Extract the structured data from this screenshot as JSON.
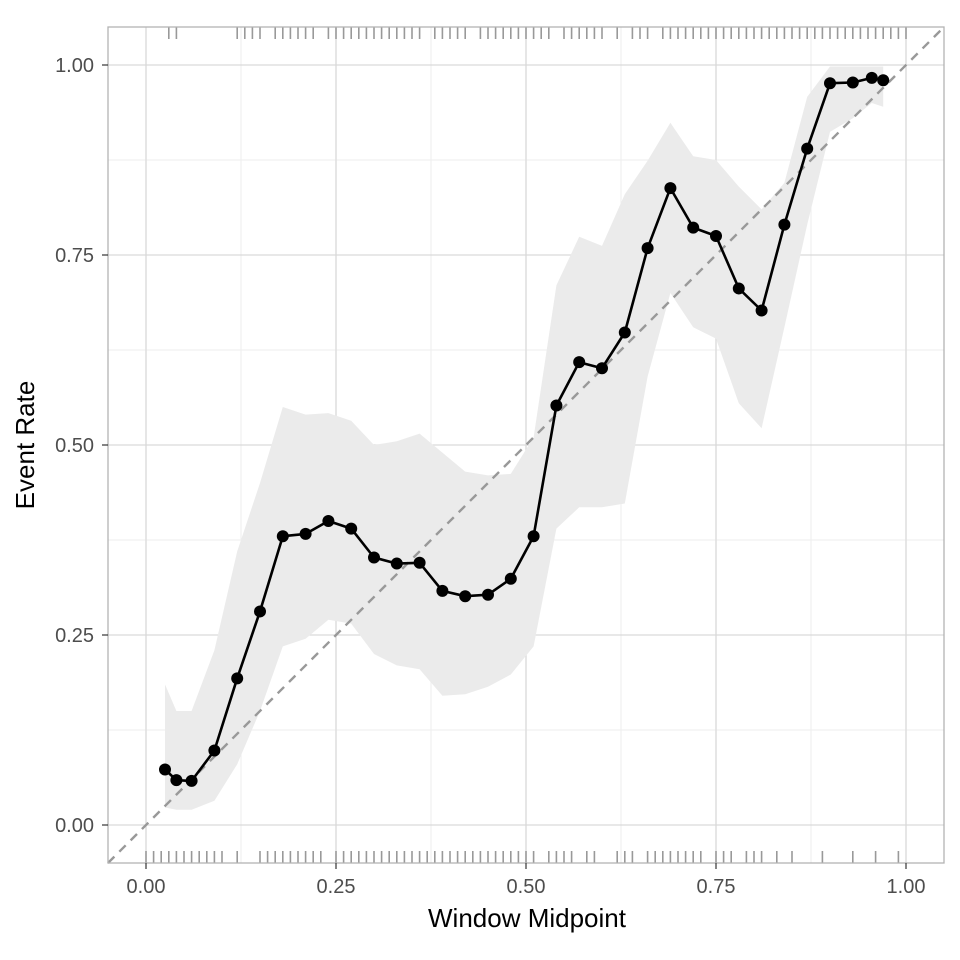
{
  "chart_data": {
    "type": "line",
    "title": "",
    "xlabel": "Window Midpoint",
    "ylabel": "Event Rate",
    "xlim": [
      -0.05,
      1.05
    ],
    "ylim": [
      -0.05,
      1.05
    ],
    "x_ticks": [
      {
        "value": 0.0,
        "label": "0.00"
      },
      {
        "value": 0.25,
        "label": "0.25"
      },
      {
        "value": 0.5,
        "label": "0.50"
      },
      {
        "value": 0.75,
        "label": "0.75"
      },
      {
        "value": 1.0,
        "label": "1.00"
      }
    ],
    "y_ticks": [
      {
        "value": 0.0,
        "label": "0.00"
      },
      {
        "value": 0.25,
        "label": "0.25"
      },
      {
        "value": 0.5,
        "label": "0.50"
      },
      {
        "value": 0.75,
        "label": "0.75"
      },
      {
        "value": 1.0,
        "label": "1.00"
      }
    ],
    "grid": true,
    "reference_line": {
      "x": [
        -0.05,
        1.05
      ],
      "y": [
        -0.05,
        1.05
      ],
      "style": "dashed"
    },
    "series": [
      {
        "x": [
          0.025,
          0.04,
          0.06,
          0.09,
          0.12,
          0.15,
          0.18,
          0.21,
          0.24,
          0.27,
          0.3,
          0.33,
          0.36,
          0.39,
          0.42,
          0.45,
          0.48,
          0.51,
          0.54,
          0.57,
          0.6,
          0.63,
          0.66,
          0.69,
          0.72,
          0.75,
          0.78,
          0.81,
          0.84,
          0.87,
          0.9,
          0.93,
          0.955,
          0.97
        ],
        "values": [
          0.073,
          0.059,
          0.058,
          0.098,
          0.193,
          0.281,
          0.38,
          0.383,
          0.4,
          0.39,
          0.352,
          0.344,
          0.345,
          0.308,
          0.301,
          0.303,
          0.324,
          0.38,
          0.552,
          0.609,
          0.601,
          0.648,
          0.759,
          0.838,
          0.786,
          0.775,
          0.706,
          0.677,
          0.79,
          0.89,
          0.976,
          0.977,
          0.983,
          0.98
        ],
        "lower": [
          0.023,
          0.02,
          0.02,
          0.032,
          0.08,
          0.15,
          0.235,
          0.245,
          0.27,
          0.265,
          0.225,
          0.21,
          0.205,
          0.17,
          0.172,
          0.182,
          0.198,
          0.235,
          0.39,
          0.418,
          0.418,
          0.423,
          0.59,
          0.7,
          0.655,
          0.64,
          0.555,
          0.522,
          0.655,
          0.79,
          0.912,
          0.93,
          0.95,
          0.945
        ],
        "upper": [
          0.185,
          0.15,
          0.15,
          0.23,
          0.36,
          0.45,
          0.55,
          0.54,
          0.542,
          0.532,
          0.5,
          0.505,
          0.515,
          0.49,
          0.465,
          0.46,
          0.462,
          0.51,
          0.71,
          0.774,
          0.762,
          0.83,
          0.874,
          0.924,
          0.88,
          0.875,
          0.84,
          0.81,
          0.845,
          0.958,
          0.998,
          0.998,
          0.998,
          0.998
        ],
        "color": "#000000"
      }
    ],
    "rug_top": [
      0.03,
      0.04,
      0.12,
      0.13,
      0.14,
      0.15,
      0.17,
      0.18,
      0.19,
      0.2,
      0.21,
      0.22,
      0.24,
      0.25,
      0.26,
      0.27,
      0.28,
      0.29,
      0.3,
      0.31,
      0.32,
      0.33,
      0.34,
      0.35,
      0.36,
      0.38,
      0.39,
      0.4,
      0.41,
      0.42,
      0.44,
      0.45,
      0.46,
      0.47,
      0.48,
      0.49,
      0.5,
      0.51,
      0.52,
      0.53,
      0.55,
      0.56,
      0.57,
      0.58,
      0.59,
      0.6,
      0.62,
      0.64,
      0.65,
      0.66,
      0.68,
      0.69,
      0.7,
      0.71,
      0.72,
      0.73,
      0.74,
      0.75,
      0.76,
      0.77,
      0.78,
      0.79,
      0.8,
      0.81,
      0.82,
      0.83,
      0.84,
      0.85,
      0.86,
      0.87,
      0.88,
      0.89,
      0.9,
      0.91,
      0.92,
      0.93,
      0.94,
      0.95,
      0.96,
      0.97,
      0.98,
      0.99,
      1.0
    ],
    "rug_bottom": [
      0.0,
      0.01,
      0.02,
      0.03,
      0.04,
      0.05,
      0.06,
      0.07,
      0.08,
      0.09,
      0.1,
      0.12,
      0.15,
      0.16,
      0.17,
      0.18,
      0.19,
      0.2,
      0.21,
      0.22,
      0.23,
      0.25,
      0.26,
      0.27,
      0.28,
      0.29,
      0.3,
      0.31,
      0.32,
      0.33,
      0.34,
      0.35,
      0.36,
      0.37,
      0.38,
      0.39,
      0.4,
      0.41,
      0.42,
      0.43,
      0.44,
      0.45,
      0.46,
      0.47,
      0.48,
      0.49,
      0.5,
      0.51,
      0.53,
      0.54,
      0.55,
      0.56,
      0.58,
      0.59,
      0.62,
      0.63,
      0.64,
      0.66,
      0.67,
      0.68,
      0.69,
      0.7,
      0.71,
      0.72,
      0.73,
      0.75,
      0.76,
      0.77,
      0.79,
      0.8,
      0.81,
      0.83,
      0.85,
      0.89,
      0.93,
      0.96,
      0.99
    ],
    "colors": {
      "line": "#000000",
      "ribbon": "#ebebeb",
      "reference": "#999999",
      "rug": "#999999",
      "grid_major": "#d9d9d9",
      "grid_minor": "#eeeeee",
      "panel_border": "#b3b3b3"
    }
  }
}
